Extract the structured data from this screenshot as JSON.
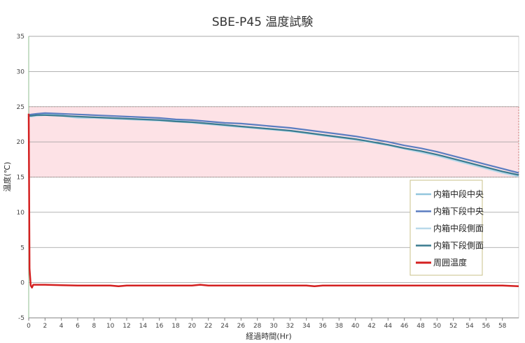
{
  "chart_data": {
    "type": "line",
    "title": "SBE-P45 温度試験",
    "xlabel": "経過時間(Hr)",
    "ylabel": "温度(℃)",
    "xlim": [
      0,
      60
    ],
    "ylim": [
      -5,
      35
    ],
    "xticks": [
      "0",
      "2",
      "4",
      "6",
      "8",
      "10",
      "12",
      "14",
      "16",
      "18",
      "20",
      "22",
      "24",
      "26",
      "28",
      "30",
      "32",
      "34",
      "36",
      "38",
      "40",
      "42",
      "44",
      "46",
      "48",
      "50",
      "52",
      "54",
      "56",
      "58"
    ],
    "yticks": [
      "-5",
      "0",
      "5",
      "10",
      "15",
      "20",
      "25",
      "30",
      "35"
    ],
    "grid": true,
    "legend_position": "right",
    "target_band": {
      "low": 15,
      "high": 25,
      "fill": "#fde2e6",
      "stroke": "#c0504d"
    },
    "series": [
      {
        "name": "内箱中段中央",
        "color": "#93c6dd",
        "x": [
          0,
          0.3,
          1,
          2,
          4,
          6,
          8,
          10,
          12,
          14,
          16,
          18,
          20,
          22,
          24,
          26,
          28,
          30,
          32,
          34,
          36,
          38,
          40,
          42,
          44,
          46,
          48,
          50,
          52,
          54,
          56,
          58,
          60
        ],
        "y": [
          23.6,
          23.6,
          23.8,
          23.9,
          23.8,
          23.5,
          23.5,
          23.4,
          23.3,
          23.2,
          23.1,
          23.0,
          22.8,
          22.6,
          22.4,
          22.2,
          22.0,
          21.8,
          21.6,
          21.3,
          21.0,
          20.7,
          20.4,
          20.0,
          19.6,
          19.1,
          18.6,
          18.1,
          17.5,
          16.9,
          16.3,
          15.7,
          15.2
        ]
      },
      {
        "name": "内箱下段中央",
        "color": "#5b7dc1",
        "x": [
          0,
          0.3,
          1,
          2,
          4,
          6,
          8,
          10,
          12,
          14,
          16,
          18,
          20,
          22,
          24,
          26,
          28,
          30,
          32,
          34,
          36,
          38,
          40,
          42,
          44,
          46,
          48,
          50,
          52,
          54,
          56,
          58,
          60
        ],
        "y": [
          23.8,
          23.9,
          24.0,
          24.1,
          24.0,
          23.9,
          23.8,
          23.7,
          23.6,
          23.5,
          23.4,
          23.2,
          23.1,
          22.9,
          22.7,
          22.6,
          22.4,
          22.2,
          22.0,
          21.7,
          21.4,
          21.1,
          20.8,
          20.4,
          20.0,
          19.5,
          19.1,
          18.6,
          18.0,
          17.4,
          16.8,
          16.2,
          15.6
        ]
      },
      {
        "name": "内箱中段側面",
        "color": "#b9d9ea",
        "x": [
          0,
          0.3,
          1,
          2,
          4,
          6,
          8,
          10,
          12,
          14,
          16,
          18,
          20,
          22,
          24,
          26,
          28,
          30,
          32,
          34,
          36,
          38,
          40,
          42,
          44,
          46,
          48,
          50,
          52,
          54,
          56,
          58,
          60
        ],
        "y": [
          23.6,
          23.6,
          23.7,
          23.8,
          23.7,
          23.4,
          23.4,
          23.3,
          23.2,
          23.1,
          23.0,
          22.9,
          22.7,
          22.5,
          22.3,
          22.1,
          21.9,
          21.7,
          21.5,
          21.2,
          20.9,
          20.6,
          20.3,
          19.9,
          19.5,
          19.0,
          18.5,
          18.0,
          17.4,
          16.8,
          16.2,
          15.6,
          15.1
        ]
      },
      {
        "name": "内箱下段側面",
        "color": "#3a7b8f",
        "x": [
          0,
          0.3,
          1,
          2,
          4,
          6,
          8,
          10,
          12,
          14,
          16,
          18,
          20,
          22,
          24,
          26,
          28,
          30,
          32,
          34,
          36,
          38,
          40,
          42,
          44,
          46,
          48,
          50,
          52,
          54,
          56,
          58,
          60
        ],
        "y": [
          23.7,
          23.7,
          23.8,
          23.8,
          23.7,
          23.6,
          23.5,
          23.4,
          23.3,
          23.2,
          23.1,
          22.9,
          22.8,
          22.6,
          22.4,
          22.2,
          22.0,
          21.8,
          21.6,
          21.3,
          21.0,
          20.7,
          20.4,
          20.0,
          19.6,
          19.1,
          18.7,
          18.2,
          17.6,
          17.0,
          16.4,
          15.8,
          15.3
        ]
      },
      {
        "name": "周囲温度",
        "color": "#d42020",
        "x": [
          0,
          0.1,
          0.25,
          0.4,
          0.55,
          0.7,
          1,
          2,
          4,
          6,
          8,
          10,
          11,
          12,
          14,
          16,
          18,
          20,
          21,
          22,
          24,
          26,
          28,
          30,
          32,
          34,
          35,
          36,
          38,
          40,
          42,
          44,
          46,
          48,
          50,
          52,
          54,
          56,
          58,
          60
        ],
        "y": [
          24,
          2,
          -0.4,
          -0.7,
          -0.3,
          -0.3,
          -0.3,
          -0.3,
          -0.35,
          -0.4,
          -0.4,
          -0.4,
          -0.5,
          -0.4,
          -0.4,
          -0.4,
          -0.4,
          -0.4,
          -0.3,
          -0.4,
          -0.4,
          -0.4,
          -0.4,
          -0.4,
          -0.4,
          -0.4,
          -0.5,
          -0.4,
          -0.4,
          -0.4,
          -0.4,
          -0.4,
          -0.4,
          -0.4,
          -0.4,
          -0.4,
          -0.4,
          -0.4,
          -0.4,
          -0.5
        ]
      }
    ]
  }
}
